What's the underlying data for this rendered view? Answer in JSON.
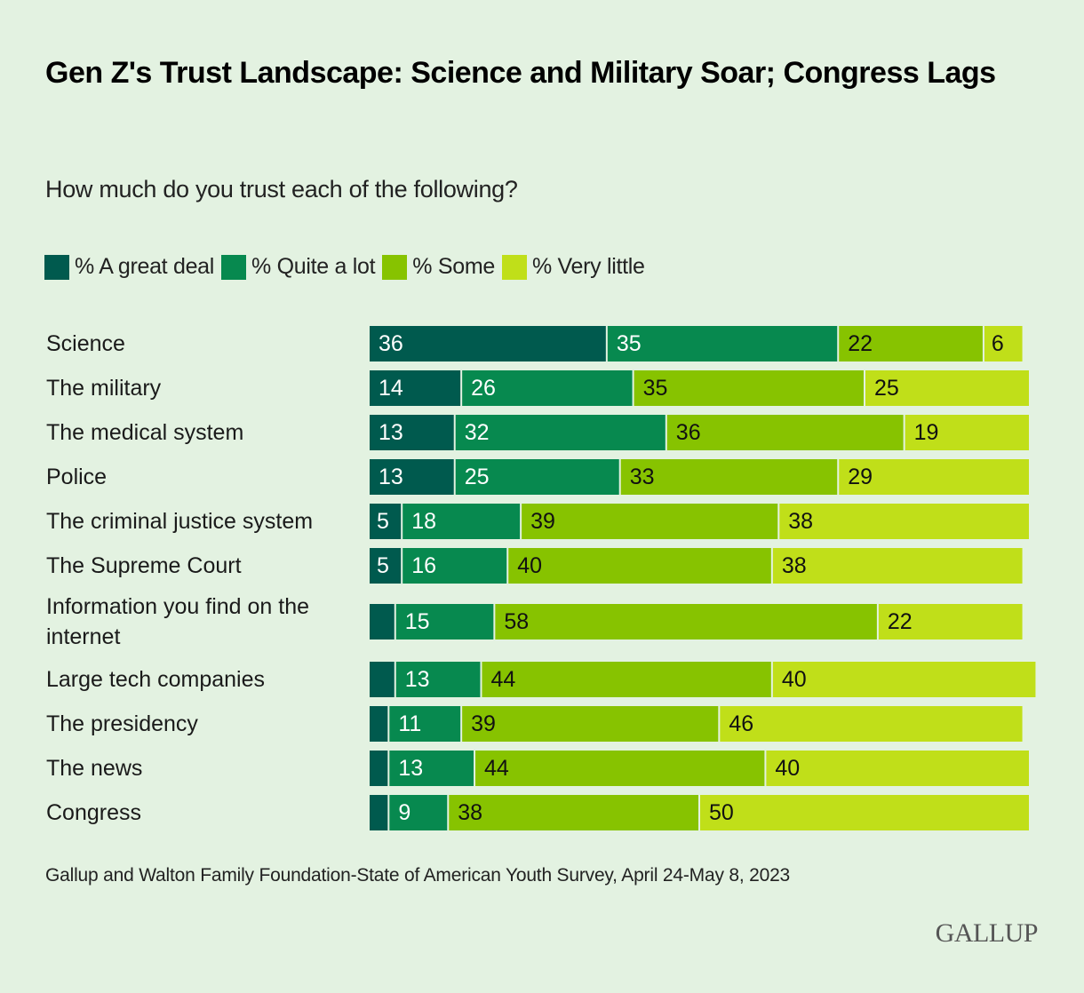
{
  "header": {
    "title": "Gen Z's Trust Landscape: Science and Military Soar; Congress Lags",
    "subtitle": "How much do you trust each of the following?"
  },
  "footer": {
    "source": "Gallup and Walton Family Foundation-State of American Youth Survey, April 24-May 8, 2023",
    "logo": "GALLUP"
  },
  "chart_data": {
    "type": "bar",
    "orientation": "horizontal",
    "stacked": true,
    "title": "Gen Z's Trust Landscape: Science and Military Soar; Congress Lags",
    "subtitle": "How much do you trust each of the following?",
    "xlabel": "",
    "ylabel": "",
    "xlim": [
      0,
      100
    ],
    "grid": false,
    "legend_position": "top-left",
    "categories": [
      "Science",
      "The military",
      "The medical system",
      "Police",
      "The criminal justice system",
      "The Supreme Court",
      "Information you find on the internet",
      "Large tech companies",
      "The presidency",
      "The news",
      "Congress"
    ],
    "series": [
      {
        "name": "% A great deal",
        "color": "#005a4e",
        "label_color": "#ffffff",
        "values": [
          36,
          14,
          13,
          13,
          5,
          5,
          4,
          4,
          3,
          3,
          3
        ],
        "labels_shown": [
          true,
          true,
          true,
          true,
          true,
          true,
          false,
          false,
          false,
          false,
          false
        ]
      },
      {
        "name": "% Quite a lot",
        "color": "#07894f",
        "label_color": "#ffffff",
        "values": [
          35,
          26,
          32,
          25,
          18,
          16,
          15,
          13,
          11,
          13,
          9
        ],
        "labels_shown": [
          true,
          true,
          true,
          true,
          true,
          true,
          true,
          true,
          true,
          true,
          true
        ]
      },
      {
        "name": "% Some",
        "color": "#87c300",
        "label_color": "#111111",
        "values": [
          22,
          35,
          36,
          33,
          39,
          40,
          58,
          44,
          39,
          44,
          38
        ],
        "labels_shown": [
          true,
          true,
          true,
          true,
          true,
          true,
          true,
          true,
          true,
          true,
          true
        ]
      },
      {
        "name": "% Very little",
        "color": "#c0df19",
        "label_color": "#111111",
        "values": [
          6,
          25,
          19,
          29,
          38,
          38,
          22,
          40,
          46,
          40,
          50
        ],
        "labels_shown": [
          true,
          true,
          true,
          true,
          true,
          true,
          true,
          true,
          true,
          true,
          true
        ]
      }
    ]
  }
}
